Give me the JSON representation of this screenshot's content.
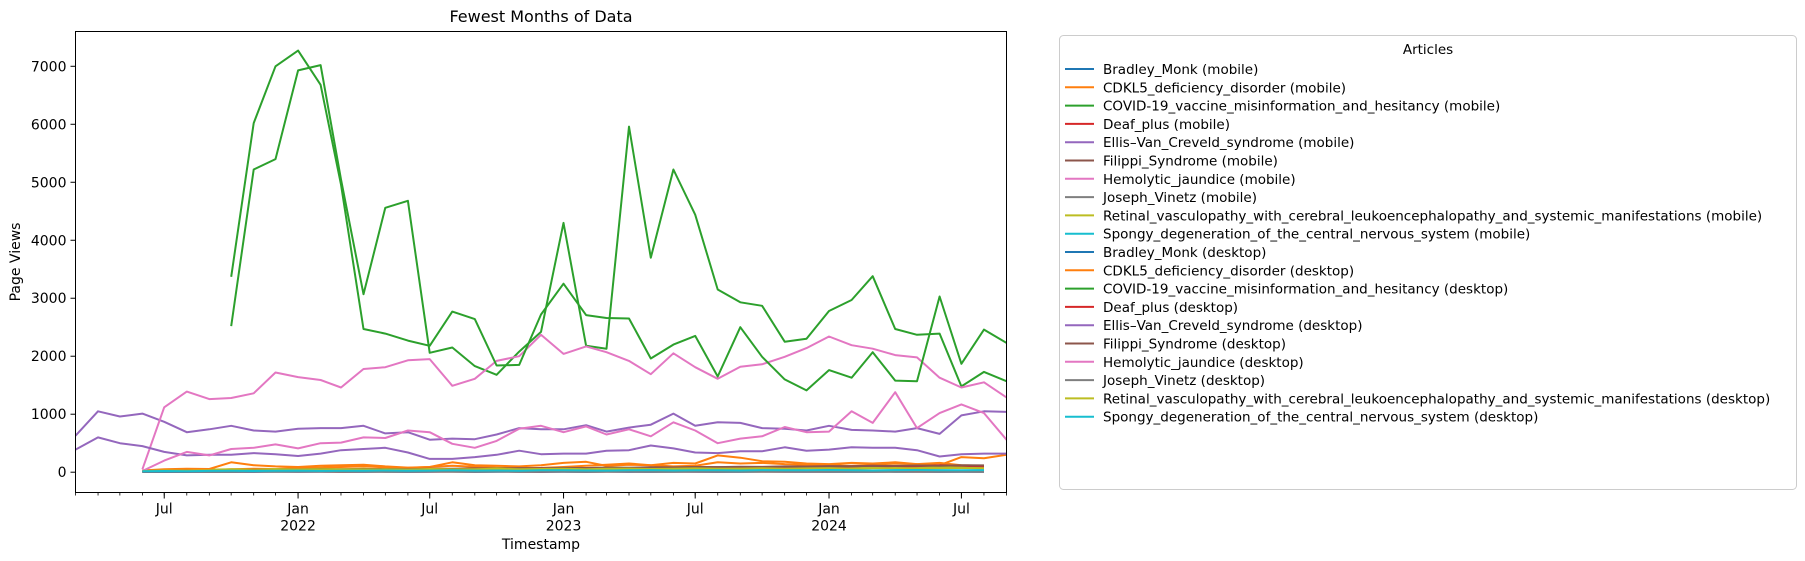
{
  "chart_data": {
    "type": "line",
    "title": "Fewest Months of Data",
    "xlabel": "Timestamp",
    "ylabel": "Page Views",
    "xlim": [
      "2021-03-01",
      "2024-09-01"
    ],
    "ylim": [
      -350,
      7600
    ],
    "y_ticks": [
      0,
      1000,
      2000,
      3000,
      4000,
      5000,
      6000,
      7000
    ],
    "x_ticks": [
      {
        "date": "2021-07-01",
        "label": "Jul",
        "sub": ""
      },
      {
        "date": "2022-01-01",
        "label": "Jan",
        "sub": "2022"
      },
      {
        "date": "2022-07-01",
        "label": "Jul",
        "sub": ""
      },
      {
        "date": "2023-01-01",
        "label": "Jan",
        "sub": "2023"
      },
      {
        "date": "2023-07-01",
        "label": "Jul",
        "sub": ""
      },
      {
        "date": "2024-01-01",
        "label": "Jan",
        "sub": "2024"
      },
      {
        "date": "2024-07-01",
        "label": "Jul",
        "sub": ""
      }
    ],
    "grid": false,
    "legend": {
      "title": "Articles",
      "placement": "outside-right"
    },
    "series": [
      {
        "name": "Bradley_Monk (mobile)",
        "color": "#1f77b4",
        "start": "2021-06-01",
        "values": [
          10,
          12,
          15,
          14,
          18,
          20,
          16,
          22,
          25,
          18,
          20,
          24,
          22,
          30,
          25,
          20,
          18,
          22,
          26,
          24,
          20,
          28,
          30,
          26,
          22,
          24,
          20,
          18,
          22,
          26,
          24,
          22,
          20,
          18,
          25,
          22,
          20,
          24,
          26
        ]
      },
      {
        "name": "CDKL5_deficiency_disorder (mobile)",
        "color": "#ff7f0e",
        "start": "2021-06-01",
        "values": [
          20,
          30,
          40,
          35,
          50,
          60,
          55,
          70,
          80,
          90,
          100,
          85,
          75,
          90,
          110,
          95,
          80,
          70,
          75,
          90,
          110,
          130,
          150,
          120,
          100,
          110,
          170,
          150,
          160,
          140,
          130,
          120,
          110,
          130,
          150,
          140,
          160,
          120,
          110
        ]
      },
      {
        "name": "COVID-19_vaccine_misinformation_and_hesitancy (mobile)",
        "color": "#2ca02c",
        "start": "2021-10-01",
        "values": [
          2520,
          5220,
          5400,
          6930,
          7020,
          5050,
          3070,
          4560,
          4680,
          2060,
          2150,
          1830,
          1680,
          2080,
          2420,
          4300,
          2180,
          2130,
          5960,
          3700,
          5220,
          4440,
          3150,
          2930,
          2870,
          2250,
          2300,
          2780,
          2970,
          3380,
          2470,
          2370,
          2390,
          1480,
          1730,
          1570
        ]
      },
      {
        "name": "Deaf_plus (mobile)",
        "color": "#d62728",
        "start": "2021-06-01",
        "values": [
          5,
          8,
          6,
          10,
          7,
          9,
          12,
          8,
          10,
          6,
          9,
          11,
          7,
          8,
          10,
          9,
          12,
          8,
          6,
          10,
          9,
          11,
          8,
          7,
          10,
          9,
          8,
          12,
          10,
          9,
          7,
          8,
          10,
          9,
          11,
          8,
          9,
          10,
          8
        ]
      },
      {
        "name": "Ellis–Van_Creveld_syndrome (mobile)",
        "color": "#9467bd",
        "start": "2021-03-01",
        "values": [
          630,
          1050,
          960,
          1010,
          870,
          690,
          740,
          800,
          720,
          700,
          750,
          760,
          760,
          800,
          670,
          690,
          560,
          580,
          570,
          650,
          760,
          740,
          740,
          810,
          700,
          770,
          820,
          1010,
          800,
          860,
          850,
          760,
          750,
          720,
          800,
          730,
          720,
          700,
          760,
          660,
          980,
          1050,
          1040
        ]
      },
      {
        "name": "Filippi_Syndrome (mobile)",
        "color": "#8c564b",
        "start": "2021-06-01",
        "values": [
          15,
          20,
          25,
          22,
          30,
          28,
          35,
          40,
          38,
          45,
          42,
          50,
          48,
          55,
          52,
          60,
          58,
          65,
          62,
          70,
          68,
          75,
          72,
          80,
          78,
          85,
          82,
          90,
          88,
          95,
          92,
          100,
          98,
          105,
          102,
          110,
          108,
          115,
          112
        ]
      },
      {
        "name": "Hemolytic_jaundice (mobile)",
        "color": "#e377c2",
        "start": "2021-06-01",
        "values": [
          50,
          1120,
          1390,
          1260,
          1280,
          1360,
          1720,
          1640,
          1590,
          1460,
          1780,
          1810,
          1930,
          1950,
          1490,
          1610,
          1920,
          2000,
          2370,
          2040,
          2170,
          2070,
          1920,
          1690,
          2050,
          1810,
          1610,
          1820,
          1860,
          1990,
          2140,
          2340,
          2190,
          2130,
          2020,
          1980,
          1630,
          1460,
          1550,
          1290,
          1280
        ]
      },
      {
        "name": "Joseph_Vinetz (mobile)",
        "color": "#7f7f7f",
        "start": "2021-06-01",
        "values": [
          5,
          6,
          8,
          7,
          9,
          10,
          8,
          12,
          9,
          11,
          10,
          8,
          9,
          12,
          10,
          9,
          11,
          8,
          10,
          12,
          9,
          8,
          10,
          11,
          9,
          12,
          10,
          8,
          9,
          11,
          10,
          12,
          9,
          8,
          10,
          11,
          9,
          10,
          12
        ]
      },
      {
        "name": "Retinal_vasculopathy_with_cerebral_leukoencephalopathy_and_systemic_manifestations (mobile)",
        "color": "#bcbd22",
        "start": "2021-06-01",
        "values": [
          30,
          40,
          35,
          45,
          50,
          42,
          55,
          48,
          60,
          52,
          58,
          50,
          62,
          55,
          48,
          60,
          70,
          65,
          58,
          62,
          70,
          80,
          75,
          68,
          72,
          80,
          85,
          78,
          90,
          82,
          88,
          95,
          80,
          85,
          90,
          100,
          95,
          88,
          92
        ]
      },
      {
        "name": "Spongy_degeneration_of_the_central_nervous_system (mobile)",
        "color": "#17becf",
        "start": "2021-06-01",
        "values": [
          10,
          15,
          12,
          18,
          20,
          15,
          22,
          18,
          25,
          20,
          24,
          22,
          28,
          25,
          20,
          24,
          26,
          22,
          28,
          30,
          25,
          28,
          32,
          26,
          30,
          28,
          34,
          30,
          32,
          28,
          30,
          35,
          32,
          30,
          34,
          36,
          32,
          30,
          34
        ]
      },
      {
        "name": "Bradley_Monk (desktop)",
        "color": "#1f77b4",
        "start": "2021-06-01",
        "values": [
          5,
          6,
          8,
          7,
          9,
          8,
          10,
          9,
          12,
          10,
          8,
          11,
          9,
          10,
          12,
          8,
          9,
          11,
          10,
          9,
          8,
          12,
          10,
          9,
          11,
          10,
          8,
          9,
          12,
          10,
          11,
          9,
          8,
          10,
          9,
          11,
          10,
          8,
          9
        ]
      },
      {
        "name": "CDKL5_deficiency_disorder (desktop)",
        "color": "#ff7f0e",
        "start": "2021-06-01",
        "values": [
          30,
          50,
          60,
          55,
          170,
          120,
          100,
          90,
          110,
          120,
          130,
          100,
          80,
          90,
          170,
          120,
          110,
          100,
          120,
          160,
          180,
          110,
          130,
          120,
          160,
          150,
          290,
          250,
          190,
          180,
          150,
          140,
          160,
          150,
          170,
          140,
          120,
          260,
          240,
          300,
          290
        ]
      },
      {
        "name": "COVID-19_vaccine_misinformation_and_hesitancy (desktop)",
        "color": "#2ca02c",
        "start": "2021-10-01",
        "values": [
          3370,
          6020,
          7000,
          7270,
          6680,
          4960,
          2470,
          2390,
          2270,
          2180,
          2770,
          2640,
          1840,
          1850,
          2720,
          3250,
          2710,
          2660,
          2650,
          1960,
          2200,
          2350,
          1650,
          2500,
          1990,
          1600,
          1410,
          1760,
          1630,
          2070,
          1580,
          1570,
          3030,
          1870,
          2460,
          2230
        ]
      },
      {
        "name": "Deaf_plus (desktop)",
        "color": "#d62728",
        "start": "2021-06-01",
        "values": [
          10,
          15,
          20,
          18,
          25,
          30,
          35,
          28,
          40,
          30,
          45,
          50,
          40,
          35,
          55,
          45,
          60,
          50,
          70,
          55,
          65,
          75,
          60,
          80,
          70,
          90,
          85,
          75,
          80,
          95,
          90,
          85,
          100,
          110,
          95,
          105,
          120,
          110,
          100
        ]
      },
      {
        "name": "Ellis–Van_Creveld_syndrome (desktop)",
        "color": "#9467bd",
        "start": "2021-03-01",
        "values": [
          390,
          600,
          500,
          450,
          350,
          290,
          300,
          300,
          330,
          310,
          280,
          320,
          380,
          400,
          420,
          340,
          230,
          230,
          260,
          300,
          370,
          310,
          320,
          320,
          370,
          380,
          460,
          410,
          340,
          330,
          360,
          360,
          430,
          370,
          390,
          430,
          420,
          420,
          380,
          270,
          310,
          320,
          320
        ]
      },
      {
        "name": "Filippi_Syndrome (desktop)",
        "color": "#8c564b",
        "start": "2021-06-01",
        "values": [
          20,
          25,
          30,
          28,
          35,
          40,
          38,
          45,
          42,
          50,
          48,
          55,
          52,
          60,
          58,
          65,
          62,
          70,
          68,
          75,
          72,
          80,
          78,
          85,
          82,
          90,
          88,
          95,
          92,
          100,
          98,
          105,
          102,
          110,
          108,
          115,
          112,
          120,
          118
        ]
      },
      {
        "name": "Hemolytic_jaundice (desktop)",
        "color": "#e377c2",
        "start": "2021-06-01",
        "values": [
          20,
          200,
          350,
          290,
          400,
          420,
          480,
          410,
          500,
          510,
          600,
          590,
          720,
          690,
          490,
          420,
          540,
          750,
          800,
          690,
          790,
          650,
          740,
          620,
          860,
          720,
          500,
          580,
          620,
          780,
          690,
          700,
          1050,
          850,
          1380,
          760,
          1020,
          1170,
          1020,
          560,
          440
        ]
      },
      {
        "name": "Joseph_Vinetz (desktop)",
        "color": "#7f7f7f",
        "start": "2021-06-01",
        "values": [
          8,
          10,
          12,
          9,
          11,
          14,
          10,
          12,
          15,
          11,
          13,
          10,
          12,
          14,
          11,
          13,
          12,
          10,
          14,
          12,
          11,
          13,
          15,
          12,
          10,
          14,
          12,
          11,
          13,
          12,
          14,
          10,
          12,
          13,
          11,
          12,
          14,
          12,
          11
        ]
      },
      {
        "name": "Retinal_vasculopathy_with_cerebral_leukoencephalopathy_and_systemic_manifestations (desktop)",
        "color": "#bcbd22",
        "start": "2021-06-01",
        "values": [
          20,
          30,
          28,
          35,
          40,
          32,
          38,
          45,
          40,
          48,
          42,
          50,
          45,
          55,
          48,
          52,
          58,
          50,
          55,
          60,
          52,
          58,
          62,
          55,
          60,
          65,
          58,
          62,
          68,
          60,
          65,
          70,
          62,
          68,
          72,
          65,
          70,
          75,
          68
        ]
      },
      {
        "name": "Spongy_degeneration_of_the_central_nervous_system (desktop)",
        "color": "#17becf",
        "start": "2021-06-01",
        "values": [
          15,
          20,
          18,
          22,
          25,
          20,
          24,
          28,
          22,
          26,
          24,
          30,
          26,
          28,
          32,
          28,
          30,
          26,
          32,
          34,
          30,
          28,
          32,
          36,
          30,
          34,
          32,
          30,
          36,
          34,
          32,
          38,
          34,
          30,
          36,
          38,
          34,
          32,
          36
        ]
      }
    ]
  }
}
